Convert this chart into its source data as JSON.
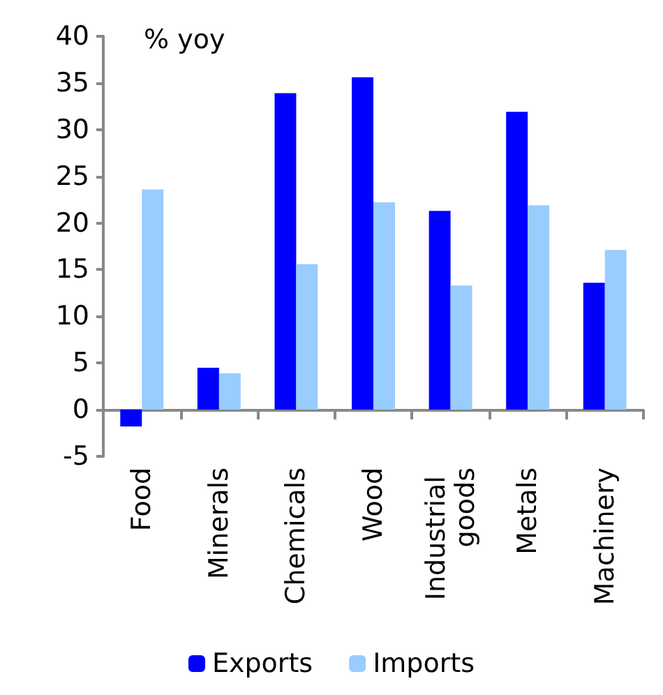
{
  "chart_data": {
    "type": "bar",
    "ylabel": "% yoy",
    "categories": [
      "Food",
      "Minerals",
      "Chemicals",
      "Wood",
      "Industrial goods",
      "Metals",
      "Machinery"
    ],
    "series": [
      {
        "name": "Exports",
        "color": "#0000ff",
        "values": [
          -1.8,
          4.5,
          33.9,
          35.6,
          21.3,
          31.9,
          13.6
        ]
      },
      {
        "name": "Imports",
        "color": "#99ccff",
        "values": [
          23.6,
          3.9,
          15.6,
          22.2,
          13.3,
          21.9,
          17.1
        ]
      }
    ],
    "ylim": [
      -5,
      40
    ],
    "yticks": [
      -5,
      0,
      5,
      10,
      15,
      20,
      25,
      30,
      35,
      40
    ],
    "grid": false,
    "legend": "bottom"
  }
}
